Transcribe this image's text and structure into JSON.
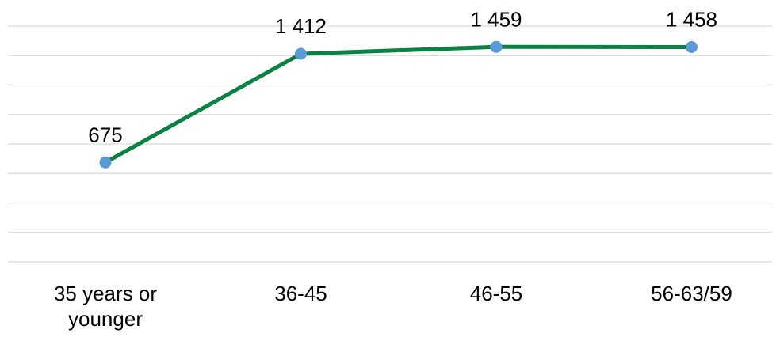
{
  "chart_data": {
    "type": "line",
    "categories": [
      "35 years or younger",
      "36-45",
      "46-55",
      "56-63/59"
    ],
    "category_label_lines": [
      [
        "35 years or",
        "younger"
      ],
      [
        "36-45"
      ],
      [
        "46-55"
      ],
      [
        "56-63/59"
      ]
    ],
    "series": [
      {
        "values": [
          675,
          1412,
          1459,
          1458
        ],
        "data_labels": [
          "675",
          "1 412",
          "1 459",
          "1 458"
        ]
      }
    ],
    "ylim": [
      0,
      1600
    ],
    "grid": true,
    "legend": "none"
  },
  "colors": {
    "line": "#0a8244",
    "marker": "#5b9bd5",
    "gridline": "#d9d9d9"
  }
}
